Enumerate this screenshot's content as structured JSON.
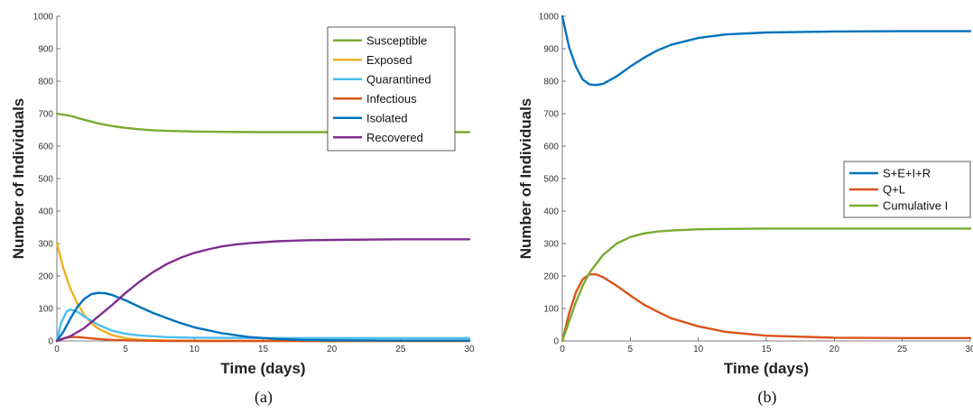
{
  "chart_data": [
    {
      "type": "line",
      "caption": "(a)",
      "xlabel": "Time (days)",
      "ylabel": "Number of Individuals",
      "xlim": [
        0,
        30
      ],
      "ylim": [
        0,
        1000
      ],
      "xticks": [
        0,
        5,
        10,
        15,
        20,
        25,
        30
      ],
      "yticks": [
        0,
        100,
        200,
        300,
        400,
        500,
        600,
        700,
        800,
        900,
        1000
      ],
      "legend_position": "top-right",
      "series": [
        {
          "name": "Susceptible",
          "color": "#77AC30",
          "x": [
            0,
            1,
            2,
            3,
            4,
            5,
            6,
            7,
            8,
            10,
            12,
            15,
            20,
            25,
            30
          ],
          "y": [
            700,
            693,
            681,
            670,
            662,
            656,
            652,
            649,
            647,
            645,
            644,
            643,
            643,
            643,
            643
          ]
        },
        {
          "name": "Exposed",
          "color": "#EDB120",
          "x": [
            0,
            0.5,
            1,
            1.5,
            2,
            2.5,
            3,
            4,
            5,
            6,
            8,
            10,
            30
          ],
          "y": [
            300,
            220,
            160,
            115,
            80,
            55,
            38,
            18,
            8,
            4,
            1,
            0,
            0
          ]
        },
        {
          "name": "Quarantined",
          "color": "#4DBEEE",
          "x": [
            0,
            0.3,
            0.7,
            1,
            1.5,
            2,
            3,
            4,
            5,
            6,
            8,
            10,
            15,
            20,
            30
          ],
          "y": [
            0,
            55,
            90,
            97,
            90,
            75,
            50,
            32,
            22,
            17,
            12,
            10,
            9,
            9,
            9
          ]
        },
        {
          "name": "Infectious",
          "color": "#D95319",
          "x": [
            0,
            0.5,
            1,
            1.5,
            2,
            3,
            4,
            5,
            6,
            8,
            10,
            30
          ],
          "y": [
            0,
            8,
            12,
            12,
            10,
            6,
            3,
            2,
            1,
            0,
            0,
            0
          ]
        },
        {
          "name": "Isolated",
          "color": "#0072BD",
          "x": [
            0,
            0.5,
            1,
            1.5,
            2,
            2.5,
            3,
            3.5,
            4,
            5,
            6,
            7,
            8,
            9,
            10,
            12,
            14,
            16,
            18,
            20,
            25,
            30
          ],
          "y": [
            0,
            30,
            70,
            105,
            130,
            144,
            148,
            147,
            142,
            125,
            105,
            86,
            70,
            55,
            42,
            24,
            12,
            6,
            3,
            2,
            1,
            1
          ]
        },
        {
          "name": "Recovered",
          "color": "#7E2F8E",
          "x": [
            0,
            1,
            2,
            3,
            4,
            5,
            6,
            7,
            8,
            9,
            10,
            11,
            12,
            13,
            14,
            16,
            18,
            20,
            25,
            30
          ],
          "y": [
            0,
            15,
            40,
            75,
            110,
            148,
            182,
            212,
            237,
            256,
            271,
            282,
            291,
            297,
            301,
            307,
            310,
            311,
            313,
            313
          ]
        }
      ]
    },
    {
      "type": "line",
      "caption": "(b)",
      "xlabel": "Time (days)",
      "ylabel": "Number of Individuals",
      "xlim": [
        0,
        30
      ],
      "ylim": [
        0,
        1000
      ],
      "xticks": [
        0,
        5,
        10,
        15,
        20,
        25,
        30
      ],
      "yticks": [
        0,
        100,
        200,
        300,
        400,
        500,
        600,
        700,
        800,
        900,
        1000
      ],
      "legend_position": "right",
      "series": [
        {
          "name": "S+E+I+R",
          "color": "#0072BD",
          "x": [
            0,
            0.5,
            1,
            1.5,
            2,
            2.5,
            3,
            4,
            5,
            6,
            7,
            8,
            10,
            12,
            15,
            20,
            25,
            30
          ],
          "y": [
            1000,
            905,
            845,
            805,
            790,
            788,
            792,
            815,
            845,
            872,
            895,
            912,
            933,
            944,
            950,
            953,
            954,
            954
          ]
        },
        {
          "name": "Q+L",
          "color": "#D95319",
          "x": [
            0,
            0.5,
            1,
            1.5,
            2,
            2.5,
            3,
            4,
            5,
            6,
            7,
            8,
            10,
            12,
            15,
            20,
            25,
            30
          ],
          "y": [
            0,
            85,
            150,
            190,
            205,
            205,
            196,
            170,
            140,
            112,
            90,
            70,
            45,
            28,
            16,
            10,
            9,
            9
          ]
        },
        {
          "name": "Cumulative I",
          "color": "#77AC30",
          "x": [
            0,
            0.5,
            1,
            1.5,
            2,
            3,
            4,
            5,
            6,
            7,
            8,
            10,
            12,
            15,
            20,
            30
          ],
          "y": [
            0,
            60,
            120,
            170,
            210,
            265,
            300,
            320,
            331,
            337,
            340,
            344,
            345,
            346,
            346,
            346
          ]
        }
      ]
    }
  ]
}
